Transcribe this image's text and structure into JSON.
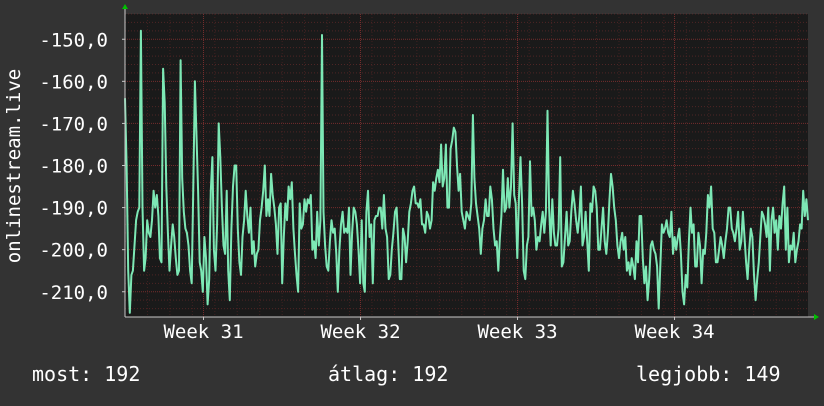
{
  "colors": {
    "background": "#333333",
    "plot_background": "#1a1a1a",
    "series": "#7de8b5",
    "grid": "#7a2e2e",
    "axis_marker": "#00c000",
    "text": "#ffffff"
  },
  "chart_data": {
    "type": "line",
    "title": "",
    "ylabel": "onlinestream.live",
    "xlabel": "",
    "ylim": [
      -216,
      -144
    ],
    "yticks": [
      -150,
      -160,
      -170,
      -180,
      -190,
      -200,
      -210
    ],
    "ytick_labels": [
      "-150,0",
      "-160,0",
      "-170,0",
      "-180,0",
      "-190,0",
      "-200,0",
      "-210,0"
    ],
    "xlim": [
      0,
      435
    ],
    "xticks": [
      {
        "label": "Week 31",
        "x": 50
      },
      {
        "label": "Week 32",
        "x": 150
      },
      {
        "label": "Week 33",
        "x": 250
      },
      {
        "label": "Week 34",
        "x": 350
      }
    ],
    "grid": true,
    "series": [
      {
        "values": [
          -164,
          -180,
          -205,
          -215,
          -206,
          -205,
          -199,
          -193,
          -191,
          -190,
          -148,
          -190,
          -205,
          -202,
          -193,
          -196,
          -197,
          -193,
          -186,
          -190,
          -187,
          -192,
          -202,
          -203,
          -157,
          -165,
          -185,
          -196,
          -205,
          -199,
          -194,
          -197,
          -202,
          -206,
          -205,
          -155,
          -183,
          -191,
          -195,
          -196,
          -199,
          -205,
          -208,
          -185,
          -160,
          -173,
          -186,
          -203,
          -205,
          -210,
          -197,
          -202,
          -213,
          -207,
          -186,
          -178,
          -200,
          -205,
          -194,
          -170,
          -178,
          -190,
          -199,
          -201,
          -186,
          -205,
          -212,
          -195,
          -185,
          -180,
          -180,
          -195,
          -203,
          -206,
          -197,
          -193,
          -186,
          -192,
          -196,
          -190,
          -201,
          -198,
          -204,
          -201,
          -200,
          -193,
          -190,
          -186,
          -180,
          -192,
          -188,
          -192,
          -182,
          -187,
          -190,
          -194,
          -201,
          -190,
          -189,
          -208,
          -197,
          -189,
          -193,
          -185,
          -188,
          -184,
          -195,
          -201,
          -206,
          -210,
          -189,
          -195,
          -194,
          -188,
          -191,
          -188,
          -189,
          -187,
          -200,
          -198,
          -202,
          -191,
          -199,
          -193,
          -149,
          -191,
          -199,
          -204,
          -205,
          -198,
          -193,
          -196,
          -195,
          -201,
          -210,
          -200,
          -194,
          -191,
          -196,
          -195,
          -196,
          -190,
          -206,
          -196,
          -190,
          -191,
          -194,
          -200,
          -208,
          -193,
          -208,
          -210,
          -191,
          -186,
          -197,
          -194,
          -208,
          -193,
          -192,
          -192,
          -190,
          -190,
          -195,
          -187,
          -195,
          -197,
          -207,
          -206,
          -200,
          -196,
          -191,
          -190,
          -198,
          -207,
          -207,
          -195,
          -197,
          -203,
          -198,
          -191,
          -189,
          -186,
          -185,
          -189,
          -189,
          -190,
          -188,
          -194,
          -194,
          -196,
          -191,
          -192,
          -195,
          -193,
          -184,
          -186,
          -183,
          -181,
          -184,
          -175,
          -185,
          -183,
          -175,
          -190,
          -190,
          -176,
          -174,
          -171,
          -172,
          -180,
          -186,
          -182,
          -191,
          -193,
          -195,
          -191,
          -192,
          -193,
          -189,
          -168,
          -183,
          -189,
          -192,
          -195,
          -201,
          -195,
          -193,
          -188,
          -192,
          -192,
          -185,
          -188,
          -195,
          -199,
          -198,
          -205,
          -197,
          -192,
          -181,
          -191,
          -190,
          -183,
          -190,
          -185,
          -170,
          -187,
          -189,
          -202,
          -188,
          -178,
          -189,
          -205,
          -207,
          -199,
          -197,
          -179,
          -192,
          -190,
          -193,
          -200,
          -197,
          -198,
          -194,
          -191,
          -196,
          -191,
          -167,
          -190,
          -199,
          -188,
          -196,
          -199,
          -199,
          -195,
          -178,
          -204,
          -203,
          -197,
          -191,
          -199,
          -198,
          -191,
          -186,
          -189,
          -193,
          -196,
          -192,
          -185,
          -199,
          -197,
          -191,
          -198,
          -205,
          -189,
          -191,
          -185,
          -186,
          -190,
          -200,
          -200,
          -195,
          -190,
          -198,
          -201,
          -196,
          -188,
          -182,
          -185,
          -190,
          -193,
          -199,
          -202,
          -198,
          -196,
          -200,
          -197,
          -205,
          -203,
          -206,
          -202,
          -204,
          -207,
          -198,
          -203,
          -192,
          -192,
          -202,
          -208,
          -204,
          -212,
          -207,
          -199,
          -198,
          -200,
          -201,
          -204,
          -214,
          -204,
          -194,
          -196,
          -195,
          -193,
          -196,
          -197,
          -191,
          -201,
          -197,
          -200,
          -197,
          -195,
          -201,
          -210,
          -213,
          -206,
          -209,
          -198,
          -190,
          -196,
          -194,
          -204,
          -204,
          -196,
          -199,
          -208,
          -200,
          -201,
          -196,
          -187,
          -190,
          -185,
          -195,
          -196,
          -203,
          -203,
          -200,
          -197,
          -199,
          -202,
          -198,
          -195,
          -190,
          -190,
          -195,
          -196,
          -198,
          -195,
          -191,
          -200,
          -198,
          -191,
          -197,
          -203,
          -207,
          -200,
          -195,
          -197,
          -206,
          -212,
          -207,
          -203,
          -197,
          -191,
          -192,
          -194,
          -197,
          -190,
          -205,
          -193,
          -190,
          -196,
          -193,
          -200,
          -192,
          -195,
          -189,
          -185,
          -200,
          -190,
          -203,
          -199,
          -200,
          -196,
          -203,
          -200,
          -198,
          -194,
          -195,
          -186,
          -192,
          -188,
          -193
        ]
      }
    ]
  },
  "stats": {
    "current_label": "most:",
    "current_value": "192",
    "average_label": "átlag:",
    "average_value": "192",
    "best_label": "legjobb:",
    "best_value": "149"
  }
}
